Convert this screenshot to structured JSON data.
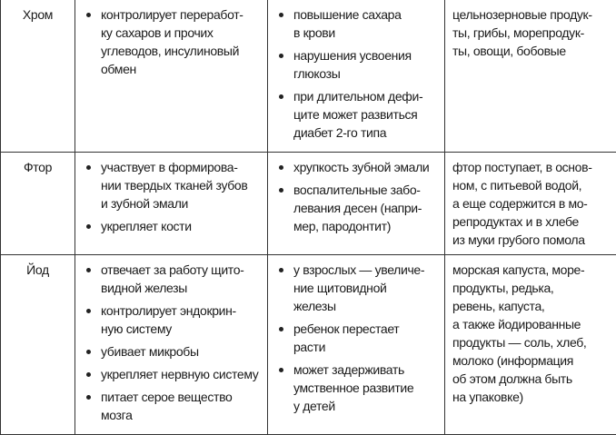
{
  "rows": [
    {
      "element": "Хром",
      "functions": [
        [
          "контролирует переработ-",
          "ку сахаров и прочих",
          "углеводов, инсулиновый",
          "обмен"
        ]
      ],
      "deficiency": [
        [
          "повышение сахара",
          "в крови"
        ],
        [
          "нарушения усвоения",
          "глюкозы"
        ],
        [
          "при длительном дефи-",
          "ците может развиться",
          "диабет 2-го типа"
        ]
      ],
      "sources": [
        "цельнозерновые продук-",
        "ты, грибы, морепродук-",
        "ты, овощи, бобовые"
      ]
    },
    {
      "element": "Фтор",
      "functions": [
        [
          "участвует в формирова-",
          "нии твердых тканей зубов",
          "и зубной эмали"
        ],
        [
          "укрепляет кости"
        ]
      ],
      "deficiency": [
        [
          "хрупкость зубной эмали"
        ],
        [
          "воспалительные забо-",
          "левания десен (напри-",
          "мер, пародонтит)"
        ]
      ],
      "sources": [
        "фтор поступает, в основ-",
        "ном, с питьевой водой,",
        "а еще содержится в мо-",
        "репродуктах и в хлебе",
        "из муки грубого помола"
      ]
    },
    {
      "element": "Йод",
      "functions": [
        [
          "отвечает за работу щито-",
          "видной железы"
        ],
        [
          "контролирует эндокрин-",
          "ную систему"
        ],
        [
          "убивает микробы"
        ],
        [
          "укрепляет нервную систему"
        ],
        [
          "питает серое вещество",
          "мозга"
        ]
      ],
      "deficiency": [
        [
          "у взрослых — увеличе-",
          "ние щитовидной",
          "железы"
        ],
        [
          "ребенок перестает",
          "расти"
        ],
        [
          "может задерживать",
          "умственное развитие",
          "у детей"
        ]
      ],
      "sources": [
        "морская капуста, море-",
        "продукты, редька,",
        "ревень, капуста,",
        "а также йодированные",
        "продукты — соль, хлеб,",
        "молоко (информация",
        "об этом должна быть",
        "на упаковке)"
      ]
    }
  ]
}
